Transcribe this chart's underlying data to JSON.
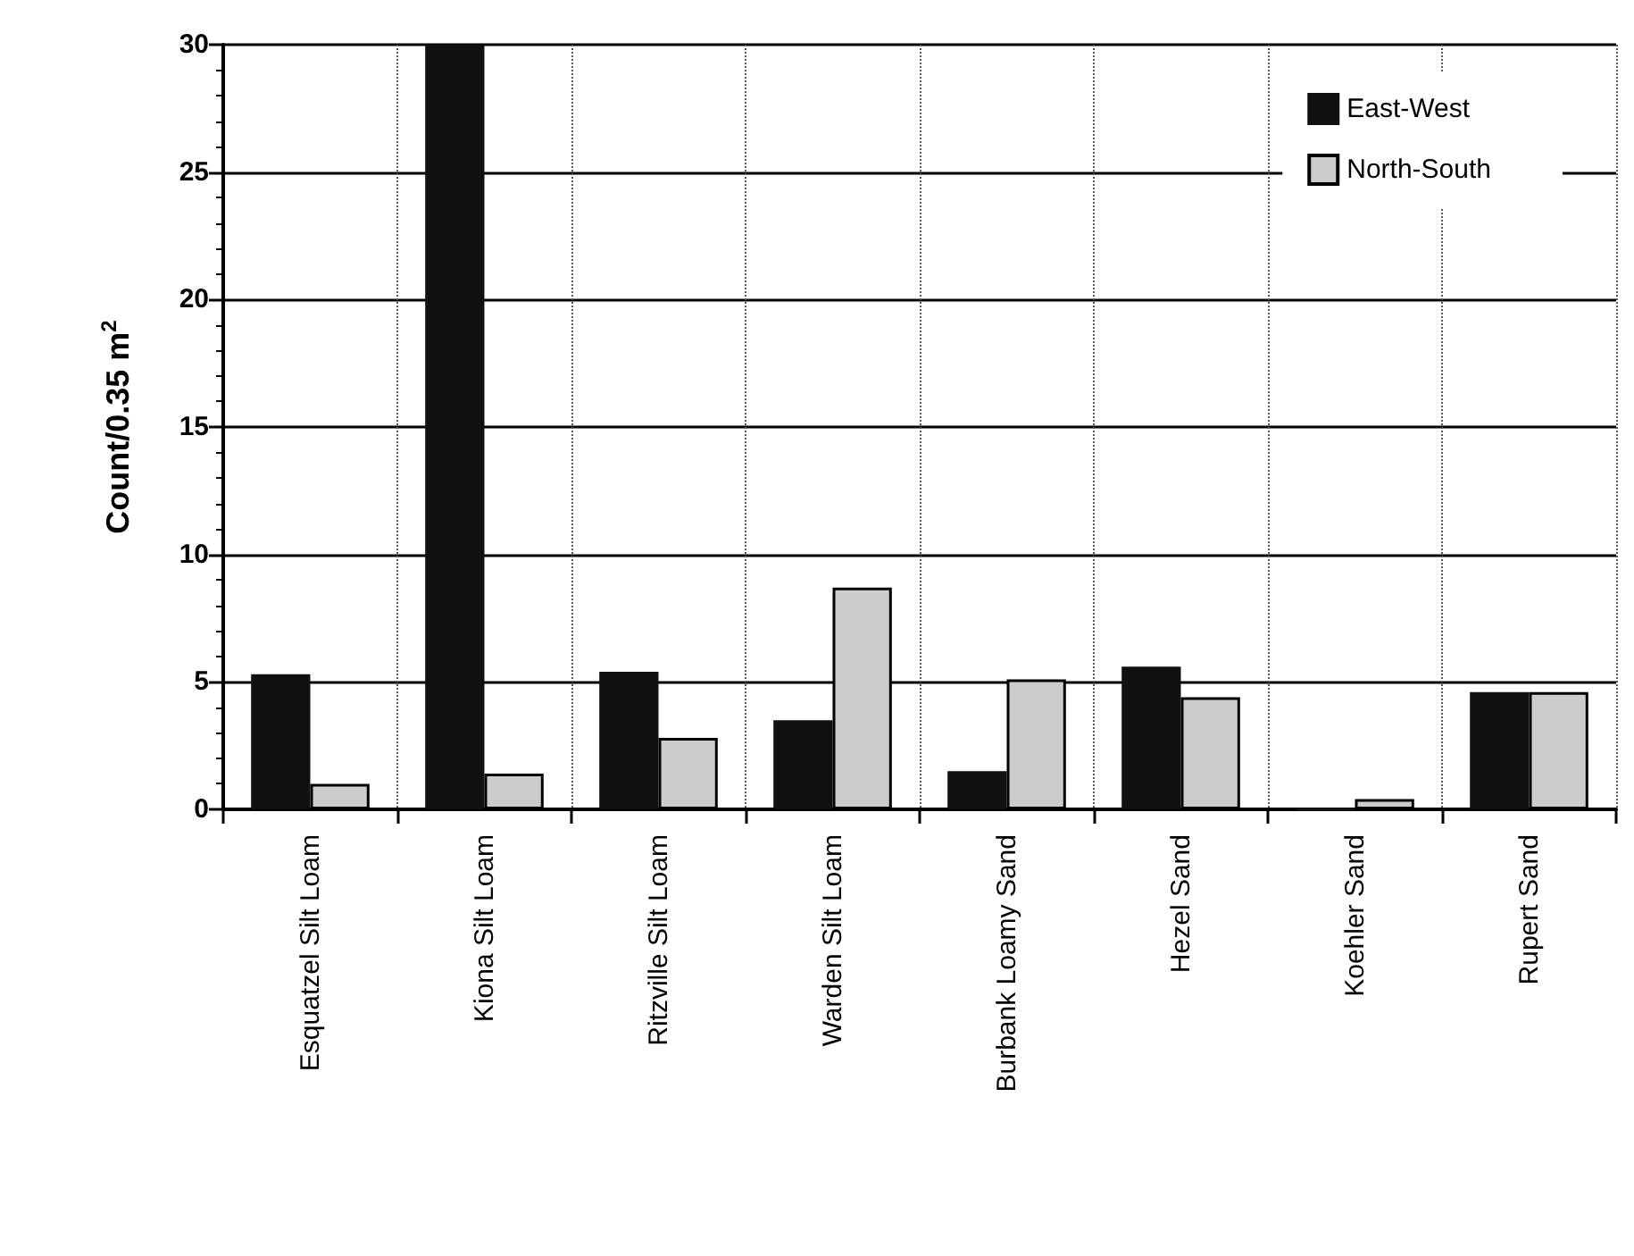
{
  "chart_data": {
    "type": "bar",
    "ylabel": "Count/0.35 m$^{2}$",
    "categories": [
      "Esquatzel Silt Loam",
      "Kiona Silt Loam",
      "Ritzville Silt Loam",
      "Warden Silt Loam",
      "Burbank Loamy Sand",
      "Hezel Sand",
      "Koehler Sand",
      "Rupert Sand"
    ],
    "series": [
      {
        "name": "East-West",
        "color": "#111111",
        "values": [
          5.3,
          30,
          5.4,
          3.5,
          1.5,
          5.6,
          0,
          4.6
        ]
      },
      {
        "name": "North-South",
        "color": "#cccccc",
        "values": [
          1.0,
          1.4,
          2.8,
          8.7,
          5.1,
          4.4,
          0.4,
          4.6
        ]
      }
    ],
    "ylim": [
      0,
      30
    ],
    "yticks": [
      0,
      5,
      10,
      15,
      20,
      25,
      30
    ],
    "grid": true,
    "legend": "top right"
  }
}
